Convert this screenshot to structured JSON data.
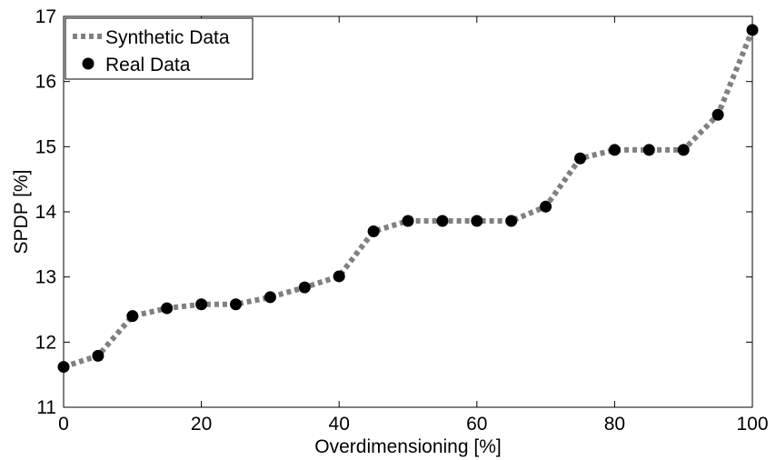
{
  "chart_data": {
    "type": "line",
    "title": "",
    "xlabel": "Overdimensioning [%]",
    "ylabel": "SPDP [%]",
    "xlim": [
      0,
      100
    ],
    "ylim": [
      11,
      17
    ],
    "xticks": [
      0,
      20,
      40,
      60,
      80,
      100
    ],
    "yticks": [
      11,
      12,
      13,
      14,
      15,
      16,
      17
    ],
    "grid": false,
    "legend_position": "top-left",
    "x": [
      0,
      5,
      10,
      15,
      20,
      25,
      30,
      35,
      40,
      45,
      50,
      55,
      60,
      65,
      70,
      75,
      80,
      85,
      90,
      95,
      100
    ],
    "series": [
      {
        "name": "Synthetic Data",
        "style": "dotted-line",
        "color": "#808080",
        "values": [
          11.62,
          11.79,
          12.4,
          12.52,
          12.58,
          12.58,
          12.69,
          12.84,
          13.01,
          13.7,
          13.86,
          13.86,
          13.86,
          13.86,
          14.08,
          14.82,
          14.95,
          14.95,
          14.95,
          15.49,
          16.79
        ]
      },
      {
        "name": "Real Data",
        "style": "markers",
        "color": "#000000",
        "values": [
          11.62,
          11.79,
          12.4,
          12.52,
          12.58,
          12.58,
          12.69,
          12.84,
          13.01,
          13.7,
          13.86,
          13.86,
          13.86,
          13.86,
          14.08,
          14.82,
          14.95,
          14.95,
          14.95,
          15.49,
          16.79
        ]
      }
    ]
  }
}
